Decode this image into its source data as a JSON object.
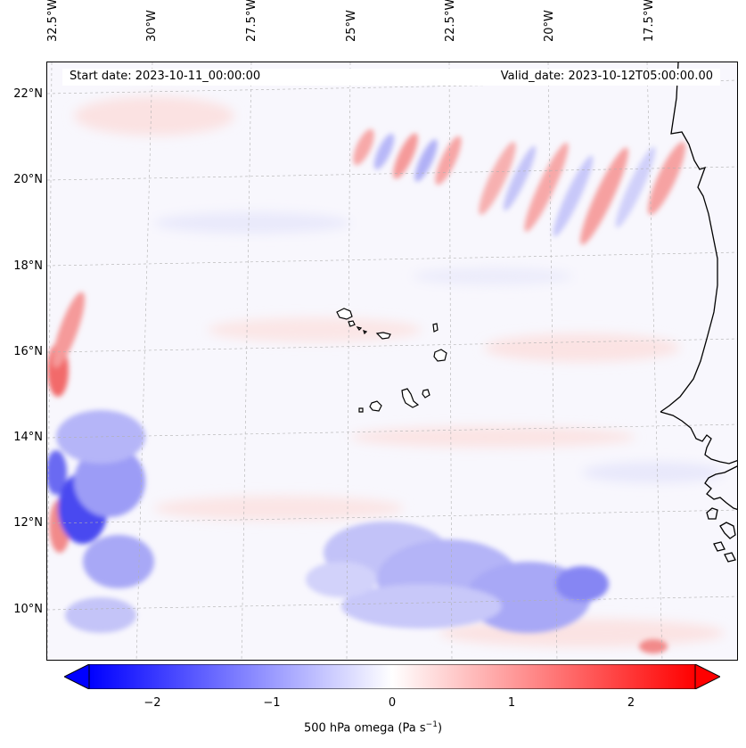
{
  "header": {
    "start_date": "Start date: 2023-10-11_00:00:00",
    "valid_date": "Valid_date: 2023-10-12T05:00:00.00"
  },
  "axes": {
    "lon_labels": [
      "32.5°W",
      "30°W",
      "27.5°W",
      "25°W",
      "22.5°W",
      "20°W",
      "17.5°W"
    ],
    "lat_labels": [
      "22°N",
      "20°N",
      "18°N",
      "16°N",
      "14°N",
      "12°N",
      "10°N"
    ]
  },
  "colorbar": {
    "ticks": [
      "−2",
      "−1",
      "0",
      "1",
      "2"
    ],
    "label": "500 hPa omega (Pa s",
    "label_sup": "−1",
    "label_end": ")",
    "colormap": "bwr",
    "range": [
      -2.75,
      2.75
    ],
    "extend": "both"
  },
  "map": {
    "projection": "Lambert conformal",
    "gridlines": true,
    "coastline_color": "#000000",
    "field": "500 hPa omega"
  }
}
